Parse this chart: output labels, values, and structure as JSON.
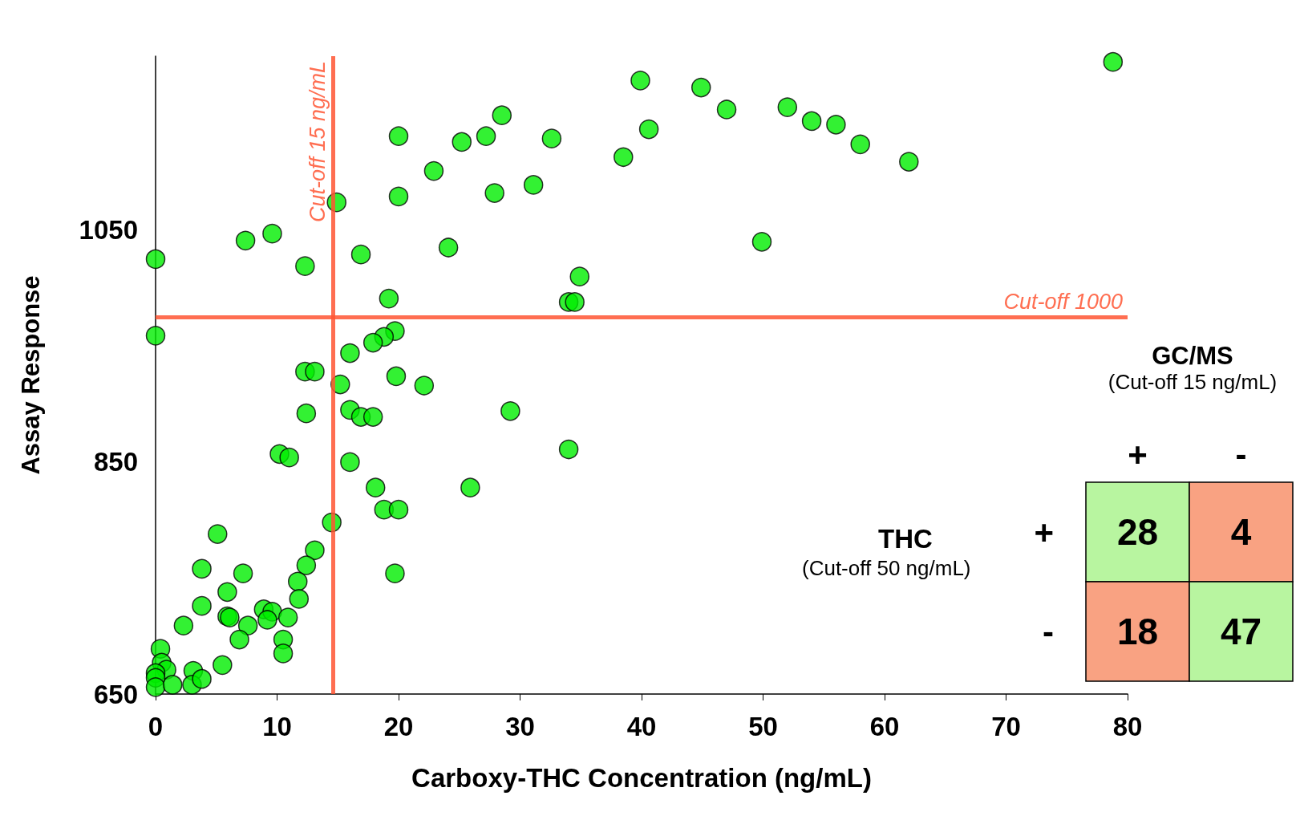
{
  "chart_data": [
    {
      "type": "scatter",
      "xlabel": "Carboxy-THC Concentration (ng/mL)",
      "ylabel": "Assay Response",
      "xlim": [
        0,
        80
      ],
      "xticks": [
        0,
        10,
        20,
        30,
        40,
        50,
        60,
        70,
        80
      ],
      "ylim": [
        650,
        1200
      ],
      "yticks": [
        650,
        850,
        1050
      ],
      "marker": "circle",
      "series": [
        {
          "color": "#00ee00",
          "x": [
            78.8,
            39.9,
            44.9,
            47.0,
            52.0,
            54.0,
            56.0,
            58.0,
            62.0,
            40.6,
            38.5,
            32.6,
            31.1,
            28.5,
            27.2,
            25.2,
            27.9,
            22.9,
            20.0,
            20.0,
            14.9,
            24.1,
            49.9,
            34.9,
            34.0,
            34.5,
            19.2,
            16.9,
            12.3,
            9.6,
            7.4,
            0,
            0,
            19.7,
            18.8,
            17.9,
            16.0,
            12.3,
            13.1,
            19.8,
            15.2,
            22.1,
            12.4,
            16.0,
            16.9,
            17.9,
            29.2,
            10.2,
            11.0,
            16.0,
            34.0,
            18.1,
            25.9,
            18.8,
            20.0,
            14.5,
            19.7,
            5.1,
            13.1,
            12.4,
            11.7,
            11.8,
            3.8,
            7.2,
            5.9,
            3.8,
            5.9,
            6.1,
            7.6,
            2.3,
            8.9,
            9.6,
            9.2,
            10.9,
            6.9,
            10.5,
            10.5,
            5.5,
            0.4,
            0.5,
            0.9,
            0,
            0,
            0,
            1.4,
            3.1,
            3.0,
            3.8
          ],
          "values": [
            1195,
            1179,
            1173,
            1154,
            1156,
            1144,
            1141,
            1124,
            1109,
            1137,
            1113,
            1129,
            1089,
            1149,
            1131,
            1126,
            1082,
            1101,
            1131,
            1079,
            1074,
            1035,
            1040,
            1010,
            988,
            988,
            991,
            1029,
            1019,
            1047,
            1041,
            1025,
            959,
            963,
            958,
            953,
            944,
            928,
            928,
            924,
            917,
            916,
            892,
            895,
            889,
            889,
            894,
            857,
            854,
            850,
            861,
            828,
            828,
            809,
            809,
            798,
            754,
            788,
            774,
            761,
            747,
            732,
            758,
            754,
            738,
            726,
            717,
            716,
            709,
            709,
            723,
            721,
            714,
            716,
            697,
            697,
            685,
            675,
            689,
            677,
            671,
            668,
            664,
            656,
            658,
            670,
            658,
            663
          ]
        }
      ],
      "ref_lines": [
        {
          "axis": "y",
          "value": 975,
          "label": "Cut-off 1000",
          "color": "#ff5533"
        },
        {
          "axis": "x",
          "value": 14.6,
          "label": "Cut-off 15 ng/mL",
          "color": "#ff5533"
        }
      ]
    },
    {
      "type": "heatmap",
      "title": "GC/MS",
      "subtitle": "(Cut-off 15 ng/mL)",
      "ylabel": "THC",
      "annotations": [
        "(Cut-off 50 ng/mL)"
      ],
      "categories": [
        "+",
        "-"
      ],
      "y_categories": [
        "+",
        "-"
      ],
      "cells": [
        [
          28,
          4
        ],
        [
          18,
          47
        ]
      ],
      "data_labels": true,
      "colors": [
        "#b8f5a0",
        "#f9a282",
        "#f9a282",
        "#b8f5a0"
      ]
    }
  ]
}
